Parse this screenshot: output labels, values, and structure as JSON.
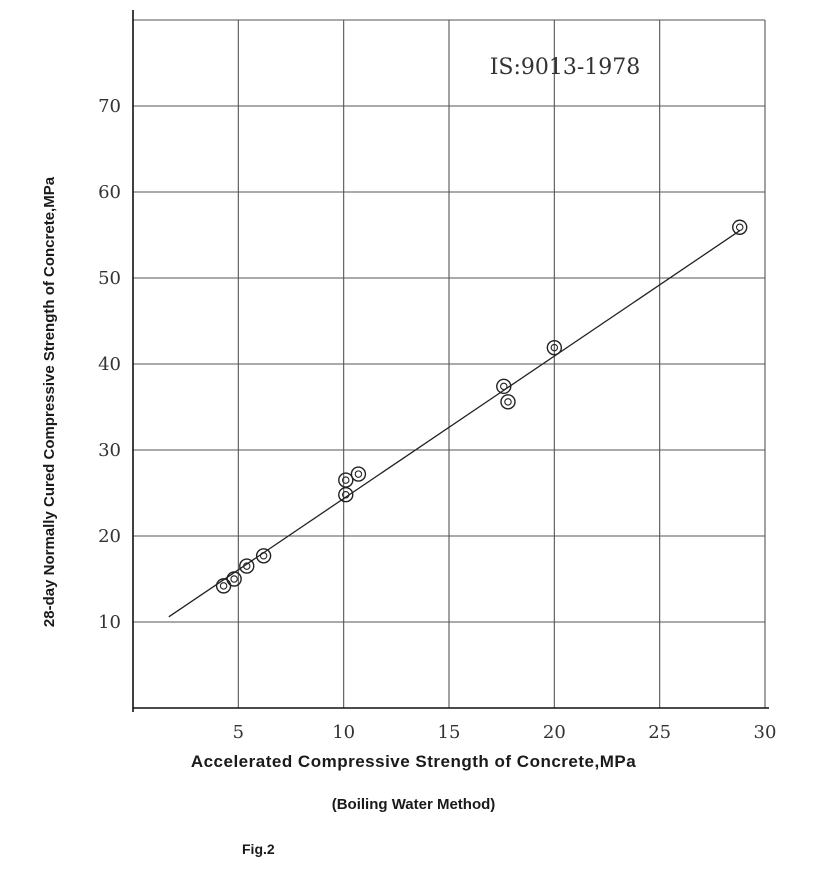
{
  "chart_data": {
    "type": "scatter",
    "annotation": "IS:9013-1978",
    "xlabel": "Accelerated Compressive Strength of Concrete,MPa",
    "xlabel_sub": "(Boiling Water Method)",
    "ylabel": "28-day Normally Cured Compressive Strength of Concrete,MPa",
    "caption": "Fig.2",
    "xlim": [
      0,
      30
    ],
    "ylim": [
      0,
      80
    ],
    "x_ticks": [
      5,
      10,
      15,
      20,
      25,
      30
    ],
    "y_ticks": [
      10,
      20,
      30,
      40,
      50,
      60,
      70
    ],
    "grid": true,
    "series": [
      {
        "points": [
          {
            "x": 4.3,
            "y": 14.2
          },
          {
            "x": 4.8,
            "y": 15.0
          },
          {
            "x": 5.4,
            "y": 16.5
          },
          {
            "x": 6.2,
            "y": 17.7
          },
          {
            "x": 10.1,
            "y": 24.8
          },
          {
            "x": 10.1,
            "y": 26.5
          },
          {
            "x": 10.7,
            "y": 27.2
          },
          {
            "x": 17.6,
            "y": 37.4
          },
          {
            "x": 17.8,
            "y": 35.6
          },
          {
            "x": 20.0,
            "y": 41.9
          },
          {
            "x": 28.8,
            "y": 55.9
          }
        ]
      }
    ],
    "fit_line": [
      {
        "x": 1.7,
        "y": 10.6
      },
      {
        "x": 28.8,
        "y": 55.5
      }
    ]
  }
}
